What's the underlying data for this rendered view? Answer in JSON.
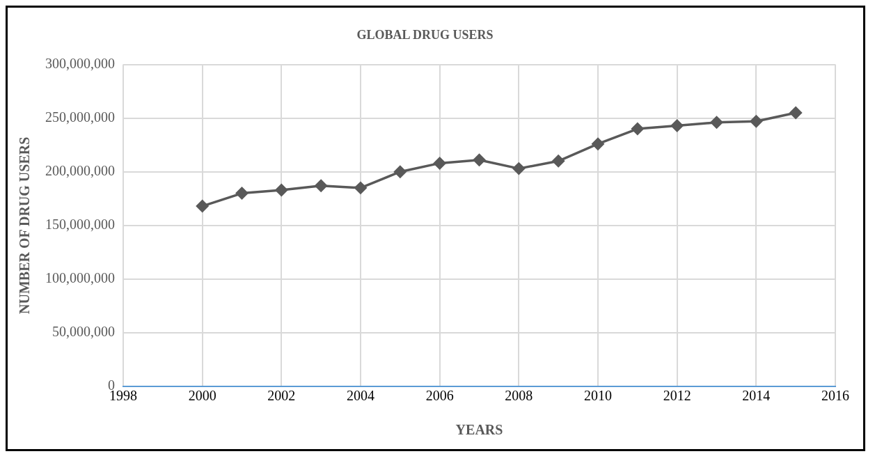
{
  "chart_data": {
    "type": "line",
    "title": "GLOBAL DRUG USERS",
    "xlabel": "YEARS",
    "ylabel": "NUMBER OF DRUG USERS",
    "x": [
      2000,
      2001,
      2002,
      2003,
      2004,
      2005,
      2006,
      2007,
      2008,
      2009,
      2010,
      2011,
      2012,
      2013,
      2014,
      2015
    ],
    "series": [
      {
        "color": "#595959",
        "values": [
          168000000,
          180000000,
          183000000,
          187000000,
          185000000,
          200000000,
          208000000,
          211000000,
          203000000,
          210000000,
          226000000,
          240000000,
          243000000,
          246000000,
          247000000,
          255000000
        ]
      }
    ],
    "xlim": [
      1998,
      2016
    ],
    "xticks": [
      1998,
      2000,
      2002,
      2004,
      2006,
      2008,
      2010,
      2012,
      2014,
      2016
    ],
    "ylim": [
      0,
      300000000
    ],
    "yticks": [
      0,
      {
        "value": 50000000,
        "label": "50,000,000"
      },
      {
        "value": 100000000,
        "label": "100,000,000"
      },
      {
        "value": 150000000,
        "label": "150,000,000"
      },
      {
        "value": 200000000,
        "label": "200,000,000"
      },
      {
        "value": 250000000,
        "label": "250,000,000"
      },
      {
        "value": 300000000,
        "label": "300,000,000"
      }
    ],
    "grid": true,
    "legend": false,
    "marker": "diamond",
    "line_style": "solid"
  }
}
